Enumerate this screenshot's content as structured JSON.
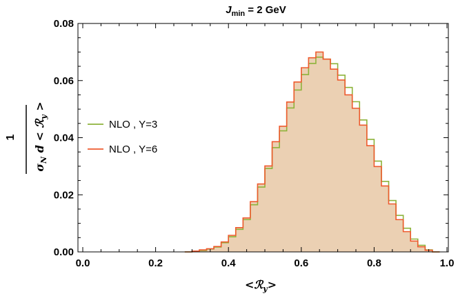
{
  "chart_data": {
    "type": "area",
    "title": "J_min = 2 GeV",
    "title_parts": {
      "symbol": "J",
      "subscript": "min",
      "rest": " = 2 GeV"
    },
    "xlabel": "<ℛy>",
    "ylabel": "1/σN dσN / d<ℛy>",
    "xlim": [
      0.0,
      1.0
    ],
    "ylim": [
      0.0,
      0.08
    ],
    "x_ticks": [
      "0.0",
      "0.2",
      "0.4",
      "0.6",
      "0.8",
      "1.0"
    ],
    "y_ticks": [
      "0.00",
      "0.02",
      "0.04",
      "0.06",
      "0.08"
    ],
    "grid": false,
    "legend_position": "left",
    "bin_edges": [
      0.28,
      0.3,
      0.32,
      0.34,
      0.36,
      0.38,
      0.4,
      0.42,
      0.44,
      0.46,
      0.48,
      0.5,
      0.52,
      0.54,
      0.56,
      0.58,
      0.6,
      0.62,
      0.64,
      0.66,
      0.68,
      0.7,
      0.72,
      0.74,
      0.76,
      0.78,
      0.8,
      0.82,
      0.84,
      0.86,
      0.88,
      0.9,
      0.92,
      0.94,
      0.96,
      0.98
    ],
    "series": [
      {
        "name": "NLO , Y=3",
        "color": "#8db33a",
        "values": [
          0.0,
          0.0002,
          0.0005,
          0.001,
          0.0017,
          0.0032,
          0.0053,
          0.0079,
          0.0113,
          0.0165,
          0.0227,
          0.0292,
          0.0365,
          0.0424,
          0.0504,
          0.0567,
          0.0621,
          0.066,
          0.0682,
          0.0675,
          0.0659,
          0.0619,
          0.0576,
          0.0526,
          0.0462,
          0.0394,
          0.0318,
          0.0247,
          0.018,
          0.0128,
          0.0083,
          0.0045,
          0.0023,
          0.0007,
          0.0
        ]
      },
      {
        "name": "NLO , Y=6",
        "color": "#ee5a2e",
        "values": [
          0.0,
          0.0003,
          0.0007,
          0.0011,
          0.0019,
          0.0035,
          0.0058,
          0.0085,
          0.0119,
          0.0176,
          0.0238,
          0.0301,
          0.0386,
          0.044,
          0.0525,
          0.0595,
          0.0645,
          0.068,
          0.07,
          0.0675,
          0.064,
          0.0602,
          0.055,
          0.0503,
          0.0444,
          0.0372,
          0.0299,
          0.0231,
          0.0168,
          0.0113,
          0.0071,
          0.0038,
          0.0018,
          0.0006,
          0.0
        ]
      }
    ],
    "fill_color": "#ebd0b3"
  }
}
